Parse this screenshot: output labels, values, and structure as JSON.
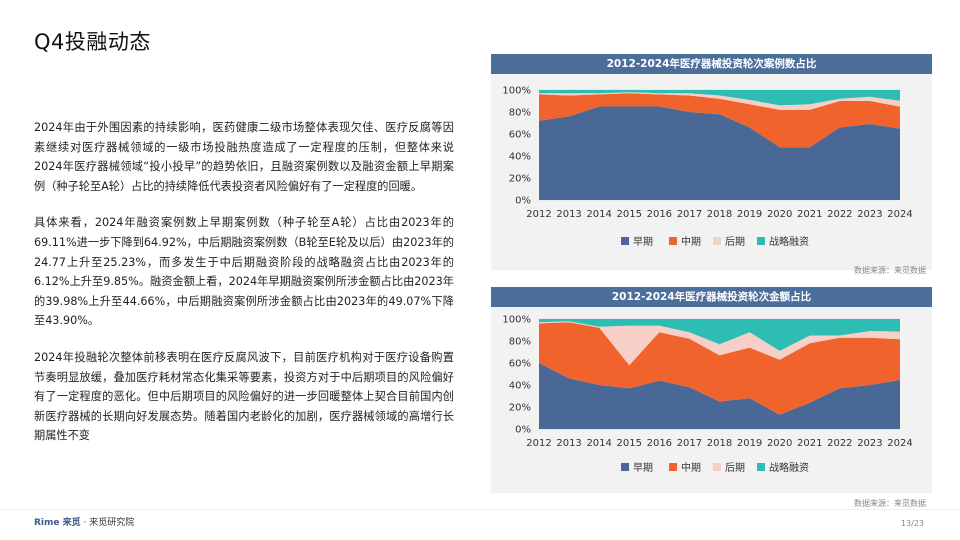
{
  "page": {
    "title": "Q4投融动态",
    "paragraphs": [
      "2024年由于外围因素的持续影响，医药健康二级市场整体表现欠佳、医疗反腐等因素继续对医疗器械领域的一级市场投融热度造成了一定程度的压制，但整体来说2024年医疗器械领域“投小投早”的趋势依旧，且融资案例数以及融资金额上早期案例（种子轮至A轮）占比的持续降低代表投资者风险偏好有了一定程度的回暖。",
      "具体来看，2024年融资案例数上早期案例数（种子轮至A轮）占比由2023年的69.11%进一步下降到64.92%，中后期融资案例数（B轮至E轮及以后）由2023年的24.77上升至25.23%，而多发生于中后期融资阶段的战略融资占比由2023年的6.12%上升至9.85%。融资金额上看，2024年早期融资案例所涉金额占比由2023年的39.98%上升至44.66%，中后期融资案例所涉金额占比由2023年的49.07%下降至43.90%。",
      "2024年投融轮次整体前移表明在医疗反腐风波下，目前医疗机构对于医疗设备购置节奏明显放缓，叠加医疗耗材常态化集采等要素，投资方对于中后期项目的风险偏好有了一定程度的恶化。但中后期项目的风险偏好的进一步回暖整体上契合目前国内创新医疗器械的长期向好发展态势。随着国内老龄化的加剧，医疗器械领域的高增行长期属性不变"
    ],
    "source_label": "数据来源：来觅数据",
    "footer_logo_brand": "Rime 来觅",
    "footer_logo_text": "· 来觅研究院",
    "page_number": "13/23"
  },
  "colors": {
    "early": "#4a6896",
    "mid": "#f0632c",
    "late": "#f6d0c8",
    "strategic": "#2ebdb2",
    "header": "#4c6e9b"
  },
  "chart_data": [
    {
      "type": "area",
      "stacked": true,
      "title": "2012-2024年医疗器械投资轮次案例数占比",
      "x": [
        "2012",
        "2013",
        "2014",
        "2015",
        "2016",
        "2017",
        "2018",
        "2019",
        "2020",
        "2021",
        "2022",
        "2023",
        "2024"
      ],
      "ylim": [
        0,
        100
      ],
      "yticks": [
        "0%",
        "20%",
        "40%",
        "60%",
        "80%",
        "100%"
      ],
      "legend_position": "bottom",
      "series": [
        {
          "name": "早期",
          "color_key": "early",
          "values": [
            72,
            76,
            85,
            85,
            85,
            80,
            78,
            66,
            48,
            48,
            66,
            69.11,
            64.92
          ]
        },
        {
          "name": "中期",
          "color_key": "mid",
          "values": [
            24,
            19,
            11,
            12,
            11,
            15,
            14,
            21,
            34,
            34,
            24,
            21,
            20
          ]
        },
        {
          "name": "后期",
          "color_key": "late",
          "values": [
            1,
            2,
            1,
            1,
            1,
            2,
            3,
            4,
            4,
            5,
            2,
            3.77,
            5.23
          ]
        },
        {
          "name": "战略融资",
          "color_key": "strategic",
          "values": [
            3,
            3,
            3,
            2,
            3,
            3,
            5,
            9,
            14,
            13,
            8,
            6.12,
            9.85
          ]
        }
      ]
    },
    {
      "type": "area",
      "stacked": true,
      "title": "2012-2024年医疗器械投资轮次金额占比",
      "x": [
        "2012",
        "2013",
        "2014",
        "2015",
        "2016",
        "2017",
        "2018",
        "2019",
        "2020",
        "2021",
        "2022",
        "2023",
        "2024"
      ],
      "ylim": [
        0,
        100
      ],
      "yticks": [
        "0%",
        "20%",
        "40%",
        "60%",
        "80%",
        "100%"
      ],
      "legend_position": "bottom",
      "series": [
        {
          "name": "早期",
          "color_key": "early",
          "values": [
            60,
            46,
            40,
            37,
            44,
            38,
            25,
            28,
            13,
            24,
            37,
            39.98,
            44.66
          ]
        },
        {
          "name": "中期",
          "color_key": "mid",
          "values": [
            36,
            51,
            52,
            21,
            44,
            44,
            42,
            46,
            50,
            54,
            46,
            43,
            37
          ]
        },
        {
          "name": "后期",
          "color_key": "late",
          "values": [
            1,
            1,
            1,
            36,
            6,
            6,
            10,
            14,
            8,
            7,
            2,
            6.07,
            6.9
          ]
        },
        {
          "name": "战略融资",
          "color_key": "strategic",
          "values": [
            3,
            2,
            7,
            6,
            6,
            12,
            23,
            12,
            29,
            15,
            15,
            10.95,
            11.44
          ]
        }
      ]
    }
  ]
}
